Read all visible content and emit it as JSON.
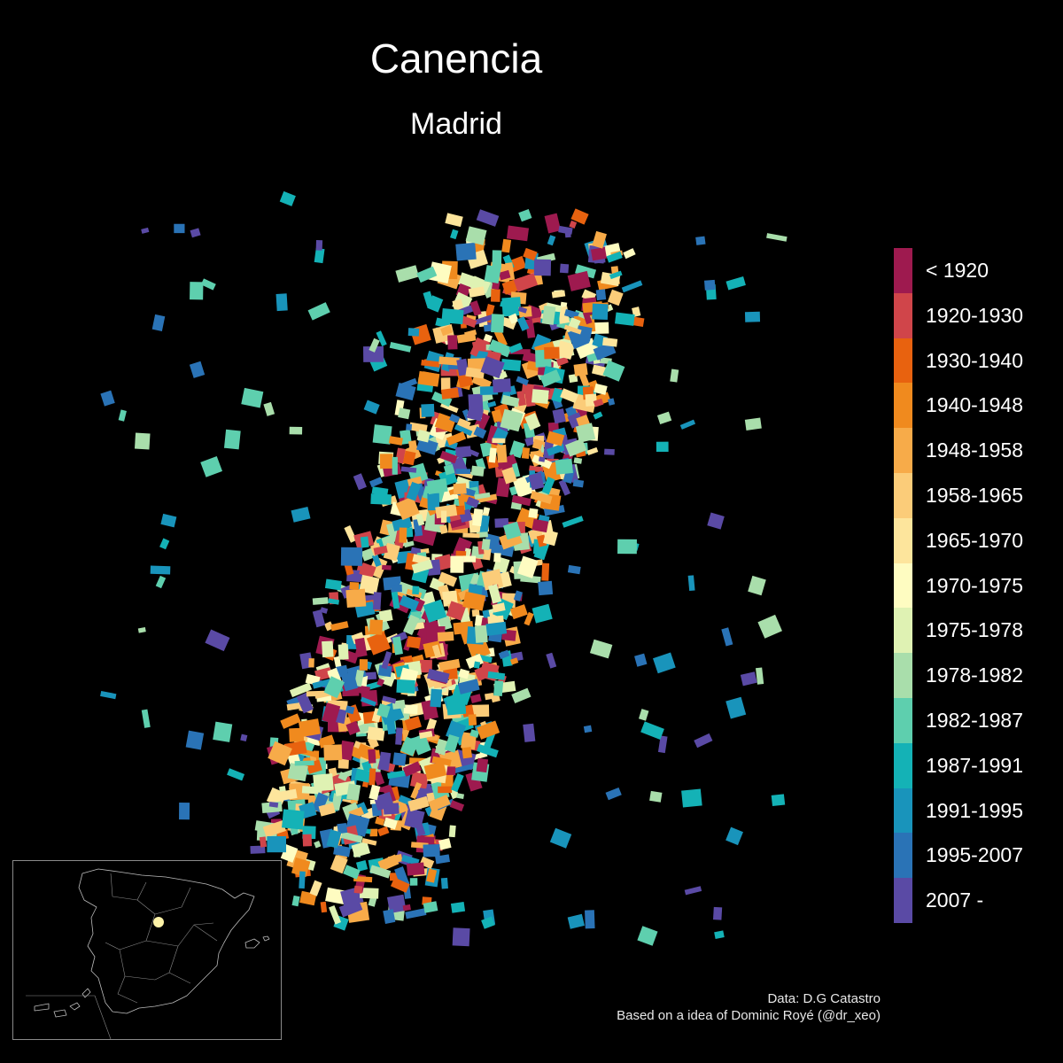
{
  "title": "Canencia",
  "subtitle": "Madrid",
  "legend": {
    "items": [
      {
        "label": "< 1920",
        "color": "#9e1a4f"
      },
      {
        "label": "1920-1930",
        "color": "#d0454a"
      },
      {
        "label": "1930-1940",
        "color": "#e8620f"
      },
      {
        "label": "1940-1948",
        "color": "#f08a1e"
      },
      {
        "label": "1948-1958",
        "color": "#f7ab49"
      },
      {
        "label": "1958-1965",
        "color": "#fbcc79"
      },
      {
        "label": "1965-1970",
        "color": "#fde59c"
      },
      {
        "label": "1970-1975",
        "color": "#fefcc1"
      },
      {
        "label": "1975-1978",
        "color": "#dff2b3"
      },
      {
        "label": "1978-1982",
        "color": "#a9deab"
      },
      {
        "label": "1982-1987",
        "color": "#5ecfae"
      },
      {
        "label": "1987-1991",
        "color": "#14b2b6"
      },
      {
        "label": "1991-1995",
        "color": "#1994bb"
      },
      {
        "label": "1995-2007",
        "color": "#2a73b6"
      },
      {
        "label": "2007 -",
        "color": "#5a4aa5"
      }
    ]
  },
  "inset": {
    "region": "Spain",
    "marker_color": "#fdf3a8"
  },
  "credits": {
    "line1": "Data: D.G Catastro",
    "line2": "Based on a idea of Dominic Royé (@dr_xeo)"
  }
}
